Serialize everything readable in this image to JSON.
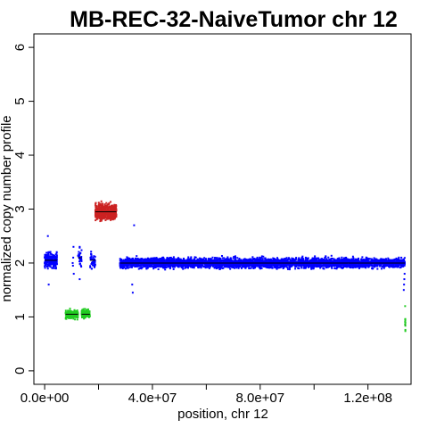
{
  "chart_data": {
    "type": "scatter",
    "title": "MB-REC-32-NaiveTumor chr 12",
    "xlabel": "position, chr 12",
    "ylabel": "normalized copy number profile",
    "xlim": [
      -4000000,
      136000000
    ],
    "ylim": [
      -0.25,
      6.25
    ],
    "x_ticks": [
      {
        "value": 0,
        "label": "0.0e+00"
      },
      {
        "value": 40000000,
        "label": "4.0e+07"
      },
      {
        "value": 80000000,
        "label": "8.0e+07"
      },
      {
        "value": 120000000,
        "label": "1.2e+08"
      }
    ],
    "x_minor_ticks": [
      20000000,
      60000000,
      100000000
    ],
    "y_ticks": [
      {
        "value": 0,
        "label": "0"
      },
      {
        "value": 1,
        "label": "1"
      },
      {
        "value": 2,
        "label": "2"
      },
      {
        "value": 3,
        "label": "3"
      },
      {
        "value": 4,
        "label": "4"
      },
      {
        "value": 5,
        "label": "5"
      },
      {
        "value": 6,
        "label": "6"
      }
    ],
    "grid": false,
    "colors": {
      "normal": "#0000ff",
      "loss": "#22cc22",
      "gain": "#cc2222",
      "segment": "#000000"
    },
    "segments": [
      {
        "start": 0,
        "end": 4600000,
        "level": 2.05,
        "state": "normal",
        "spread": 0.12,
        "count": 220,
        "style": "dense"
      },
      {
        "start": 7800000,
        "end": 12400000,
        "level": 1.05,
        "state": "loss",
        "spread": 0.07,
        "count": 200,
        "style": "dense"
      },
      {
        "start": 12400000,
        "end": 13700000,
        "level": 2.1,
        "state": "normal",
        "spread": 0.15,
        "count": 30,
        "style": "dense"
      },
      {
        "start": 13700000,
        "end": 16800000,
        "level": 1.05,
        "state": "loss",
        "spread": 0.07,
        "count": 130,
        "style": "dense"
      },
      {
        "start": 16800000,
        "end": 18800000,
        "level": 2.05,
        "state": "normal",
        "spread": 0.15,
        "count": 45,
        "style": "dense"
      },
      {
        "start": 18800000,
        "end": 26600000,
        "level": 2.95,
        "state": "gain",
        "spread": 0.12,
        "count": 700,
        "style": "dense"
      },
      {
        "start": 28000000,
        "end": 133700000,
        "level": 2.0,
        "state": "normal",
        "spread": 0.08,
        "count": 4200,
        "style": "dense"
      },
      {
        "start": 133800000,
        "end": 133900000,
        "level": 0.85,
        "state": "loss",
        "spread": 0.12,
        "count": 10,
        "style": "dense"
      }
    ],
    "points": [
      {
        "x": 13000000,
        "y": 1.7,
        "state": "normal"
      },
      {
        "x": 13000000,
        "y": 2.3,
        "state": "normal"
      },
      {
        "x": 10400000,
        "y": 2.0,
        "state": "normal"
      },
      {
        "x": 10500000,
        "y": 1.95,
        "state": "normal"
      },
      {
        "x": 10600000,
        "y": 2.1,
        "state": "normal"
      },
      {
        "x": 10700000,
        "y": 2.3,
        "state": "normal"
      },
      {
        "x": 10800000,
        "y": 1.8,
        "state": "normal"
      },
      {
        "x": 33200000,
        "y": 2.7,
        "state": "normal"
      },
      {
        "x": 32700000,
        "y": 1.45,
        "state": "normal"
      },
      {
        "x": 32500000,
        "y": 1.6,
        "state": "normal"
      },
      {
        "x": 133400000,
        "y": 1.6,
        "state": "normal"
      },
      {
        "x": 133500000,
        "y": 1.7,
        "state": "normal"
      },
      {
        "x": 133600000,
        "y": 1.8,
        "state": "normal"
      },
      {
        "x": 133300000,
        "y": 1.5,
        "state": "normal"
      },
      {
        "x": 133800000,
        "y": 1.2,
        "state": "loss"
      },
      {
        "x": 1200000,
        "y": 2.5,
        "state": "normal"
      },
      {
        "x": 1500000,
        "y": 1.6,
        "state": "normal"
      }
    ]
  }
}
